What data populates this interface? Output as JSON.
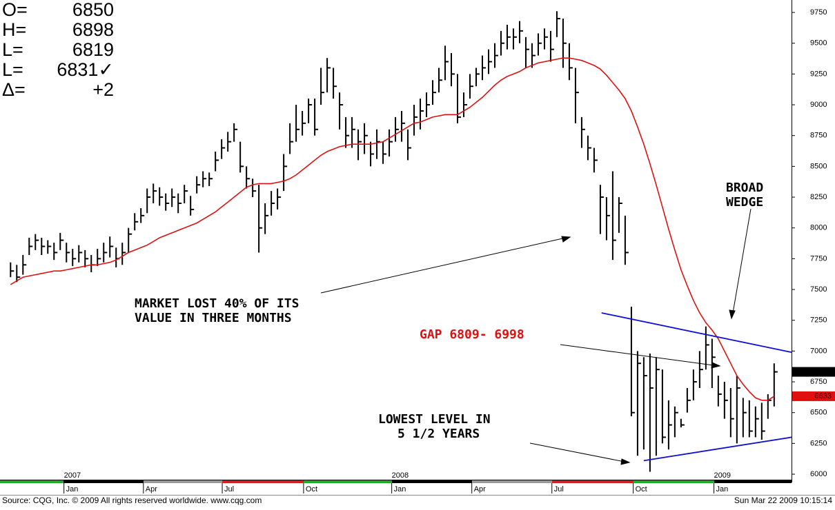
{
  "chart_data": {
    "type": "ohlc",
    "info": [
      {
        "label": "O=",
        "value": "6850"
      },
      {
        "label": "H=",
        "value": "6898"
      },
      {
        "label": "L=",
        "value": "6819"
      },
      {
        "label": "L=",
        "value": "6831✓"
      },
      {
        "label": "Δ=",
        "value": "+2"
      }
    ],
    "bar_color": "#000000",
    "ma_color": "#e01010",
    "trend_color": "#1010d0",
    "high": [
      7720,
      7700,
      7780,
      7920,
      7950,
      7920,
      7900,
      7880,
      7960,
      7880,
      7830,
      7860,
      7820,
      7780,
      7830,
      7880,
      7930,
      7840,
      7880,
      8000,
      8120,
      8160,
      8320,
      8360,
      8330,
      8280,
      8320,
      8280,
      8350,
      8260,
      8420,
      8460,
      8450,
      8620,
      8720,
      8780,
      8850,
      8700,
      8500,
      8400,
      8350,
      8200,
      8300,
      8320,
      8600,
      8850,
      9000,
      8950,
      9050,
      9050,
      9300,
      9380,
      9300,
      9100,
      8900,
      8900,
      8800,
      8850,
      8700,
      8800,
      8700,
      8800,
      8900,
      8950,
      8800,
      9000,
      9050,
      9100,
      9200,
      9300,
      9480,
      9420,
      9250,
      9100,
      9250,
      9300,
      9400,
      9450,
      9500,
      9600,
      9650,
      9620,
      9680,
      9550,
      9500,
      9580,
      9620,
      9600,
      9760,
      9700,
      9500,
      9300,
      8900,
      8750,
      8650,
      8350,
      8250,
      8460,
      8250,
      8100,
      7360,
      7000,
      6950,
      6980,
      6950,
      6850,
      6600,
      6550,
      6450,
      6700,
      6850,
      7000,
      7200,
      7100,
      6800,
      6750,
      6700,
      6800,
      6620,
      6600,
      6550,
      6580,
      6650,
      6900
    ],
    "low": [
      7600,
      7560,
      7620,
      7780,
      7820,
      7780,
      7790,
      7740,
      7820,
      7720,
      7690,
      7720,
      7680,
      7640,
      7690,
      7720,
      7760,
      7680,
      7700,
      7800,
      7980,
      8040,
      8120,
      8200,
      8180,
      8140,
      8170,
      8120,
      8200,
      8100,
      8280,
      8330,
      8340,
      8460,
      8560,
      8620,
      8700,
      8450,
      8320,
      8250,
      7800,
      7950,
      8100,
      8150,
      8300,
      8600,
      8700,
      8750,
      8850,
      8750,
      9000,
      9100,
      9050,
      8800,
      8650,
      8650,
      8550,
      8600,
      8500,
      8560,
      8520,
      8580,
      8700,
      8700,
      8550,
      8750,
      8800,
      8900,
      9000,
      9100,
      9200,
      9150,
      8850,
      8900,
      9050,
      9150,
      9200,
      9250,
      9300,
      9400,
      9450,
      9450,
      9500,
      9300,
      9300,
      9400,
      9450,
      9350,
      9550,
      9300,
      9200,
      8850,
      8650,
      8550,
      8450,
      7950,
      7900,
      7740,
      7960,
      7700,
      6470,
      6150,
      6200,
      6020,
      6150,
      6250,
      6200,
      6300,
      6380,
      6500,
      6600,
      6700,
      6850,
      6700,
      6550,
      6450,
      6300,
      6250,
      6300,
      6300,
      6300,
      6280,
      6450,
      6550
    ],
    "close": [
      7650,
      7600,
      7700,
      7850,
      7900,
      7850,
      7850,
      7800,
      7900,
      7800,
      7750,
      7800,
      7750,
      7700,
      7750,
      7800,
      7850,
      7750,
      7800,
      7950,
      8050,
      8100,
      8250,
      8300,
      8250,
      8200,
      8250,
      8200,
      8300,
      8150,
      8350,
      8400,
      8400,
      8550,
      8650,
      8700,
      8800,
      8500,
      8400,
      8300,
      8000,
      8100,
      8200,
      8250,
      8500,
      8700,
      8800,
      8850,
      9000,
      8800,
      9100,
      9300,
      9150,
      9000,
      8750,
      8800,
      8700,
      8750,
      8600,
      8700,
      8600,
      8700,
      8800,
      8850,
      8650,
      8900,
      8950,
      9000,
      9100,
      9200,
      9350,
      9250,
      8900,
      9000,
      9150,
      9250,
      9300,
      9350,
      9400,
      9500,
      9550,
      9550,
      9600,
      9450,
      9400,
      9500,
      9550,
      9450,
      9700,
      9500,
      9300,
      9100,
      8800,
      8650,
      8550,
      8250,
      8100,
      7900,
      8200,
      7800,
      6500,
      6900,
      6800,
      6700,
      6850,
      6300,
      6400,
      6500,
      6400,
      6600,
      6750,
      6850,
      7050,
      6950,
      6650,
      6600,
      6450,
      6700,
      6500,
      6350,
      6450,
      6350,
      6600,
      6831
    ],
    "ma": [
      7540,
      7570,
      7600,
      7610,
      7620,
      7630,
      7640,
      7650,
      7650,
      7660,
      7670,
      7680,
      7690,
      7700,
      7700,
      7710,
      7720,
      7740,
      7770,
      7800,
      7820,
      7840,
      7860,
      7890,
      7920,
      7940,
      7960,
      7980,
      8000,
      8020,
      8040,
      8070,
      8100,
      8130,
      8170,
      8210,
      8250,
      8290,
      8330,
      8350,
      8360,
      8360,
      8360,
      8370,
      8380,
      8400,
      8430,
      8470,
      8510,
      8550,
      8590,
      8620,
      8640,
      8660,
      8670,
      8680,
      8680,
      8680,
      8680,
      8690,
      8700,
      8730,
      8760,
      8790,
      8820,
      8850,
      8860,
      8880,
      8900,
      8910,
      8920,
      8920,
      8920,
      8950,
      8980,
      9020,
      9060,
      9110,
      9160,
      9200,
      9230,
      9250,
      9270,
      9300,
      9320,
      9340,
      9350,
      9360,
      9370,
      9380,
      9380,
      9370,
      9360,
      9340,
      9320,
      9290,
      9240,
      9180,
      9120,
      9050,
      8950,
      8820,
      8680,
      8520,
      8350,
      8170,
      7990,
      7820,
      7660,
      7530,
      7410,
      7310,
      7230,
      7170,
      7100,
      7000,
      6900,
      6800,
      6730,
      6670,
      6620,
      6600,
      6600,
      6633
    ],
    "trendlines": [
      {
        "x": [
          95.2,
          125.8
        ],
        "y": [
          7310,
          6990
        ]
      },
      {
        "x": [
          102,
          125.8
        ],
        "y": [
          6110,
          6300
        ]
      }
    ],
    "xlim": [
      -1.7,
      125.8
    ],
    "ylim": [
      5961,
      9851
    ],
    "yticks": [
      6000,
      6250,
      6500,
      6750,
      7000,
      7250,
      7500,
      7750,
      8000,
      8250,
      8500,
      8750,
      9000,
      9250,
      9500,
      9750
    ],
    "xticks": [
      {
        "value": 8.6,
        "label": "Jan"
      },
      {
        "value": 21.4,
        "label": "Apr"
      },
      {
        "value": 34.1,
        "label": "Jul"
      },
      {
        "value": 47.2,
        "label": "Oct"
      },
      {
        "value": 61.4,
        "label": "Jan"
      },
      {
        "value": 74.3,
        "label": "Apr"
      },
      {
        "value": 87.2,
        "label": "Jul"
      },
      {
        "value": 100.3,
        "label": "Oct"
      },
      {
        "value": 113.3,
        "label": "Jan"
      }
    ],
    "year_ticks": [
      {
        "value": 8.6,
        "label": "2007"
      },
      {
        "value": 61.4,
        "label": "2008"
      },
      {
        "value": 113.3,
        "label": "2009"
      }
    ],
    "annotations": [
      {
        "lines": [
          "MARKET LOST 40% OF ITS",
          "VALUE IN THREE MONTHS"
        ],
        "color": "#000000"
      },
      {
        "lines": [
          "GAP 6809- 6998"
        ],
        "color": "#e01010"
      },
      {
        "lines": [
          "BROAD",
          "WEDGE"
        ],
        "color": "#000000"
      },
      {
        "lines": [
          "LOWEST LEVEL IN",
          "5 1/2 YEARS"
        ],
        "color": "#000000"
      }
    ],
    "source": "Source: CQG, Inc. © 2009 All rights reserved worldwide. www.cqg.com",
    "timestamp": "Sun Mar 22 2009 10:15:14"
  }
}
